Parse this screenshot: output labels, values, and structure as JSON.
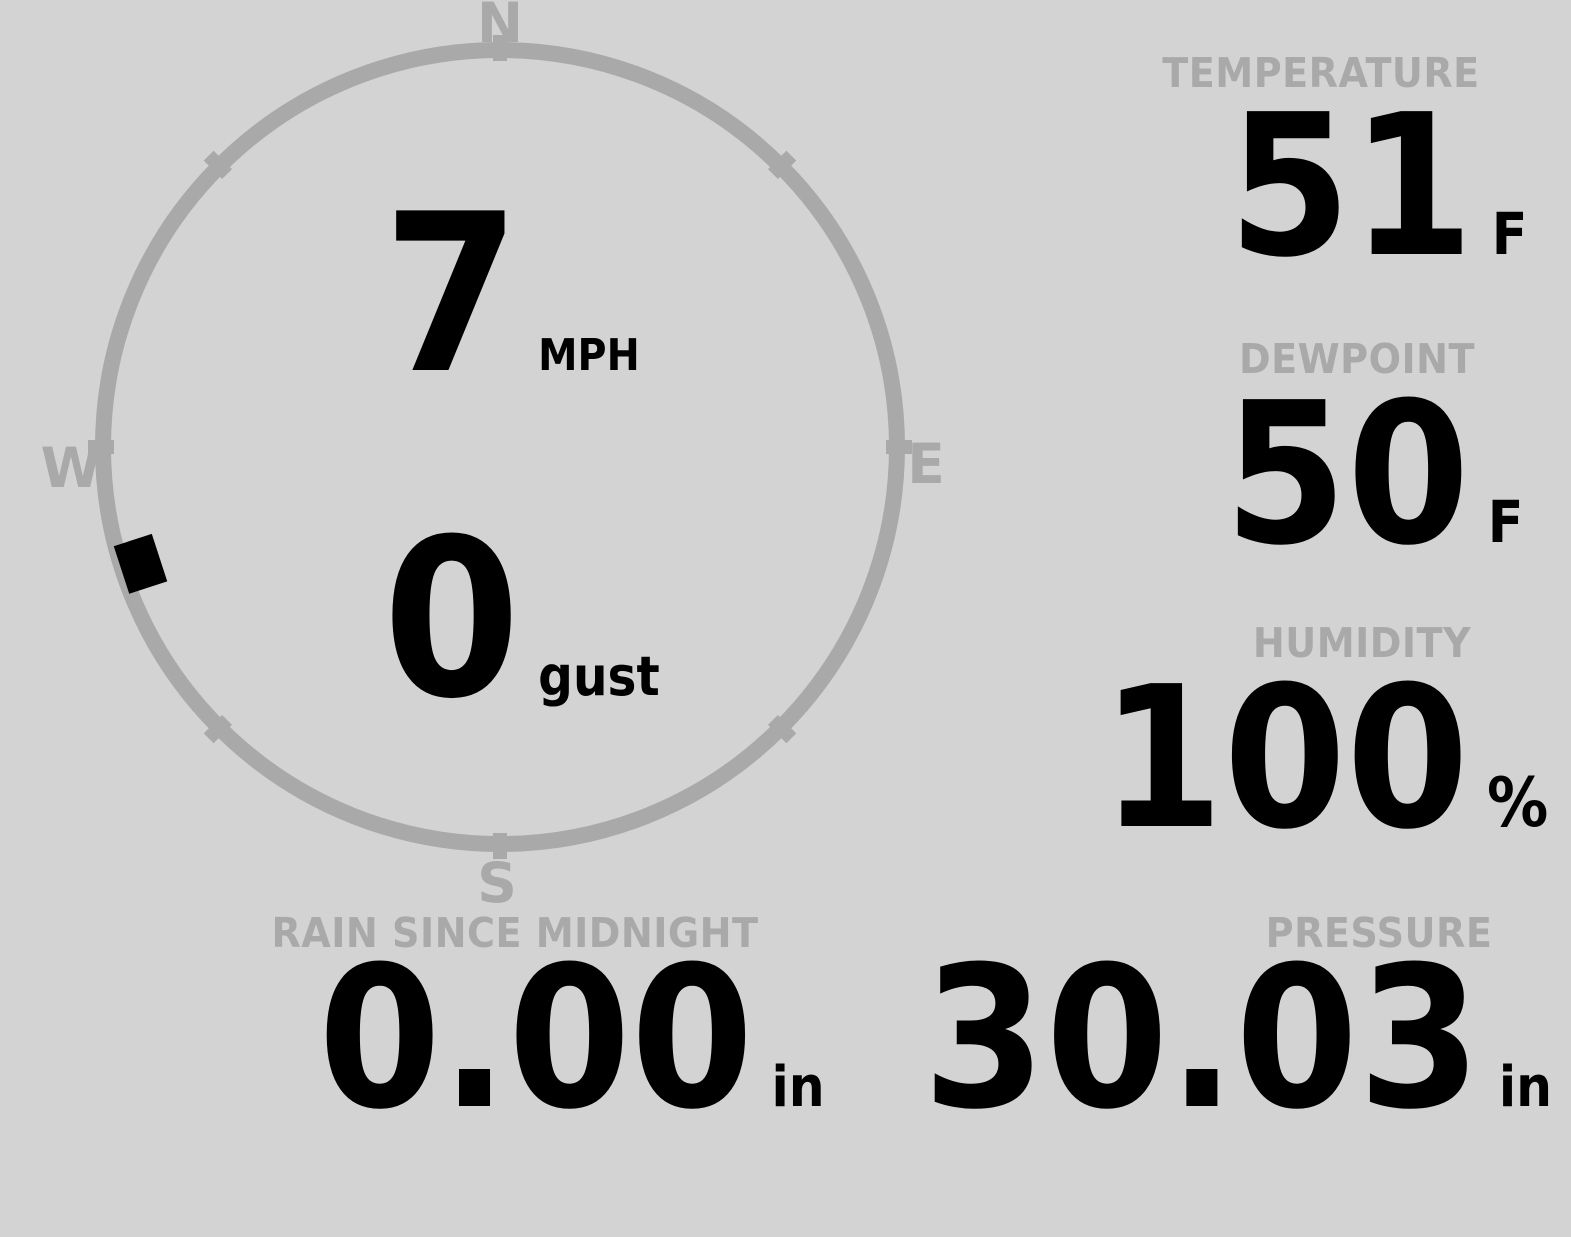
{
  "display": {
    "background_color": "#d3d3d3",
    "muted_color": "#a9a9a9",
    "value_color": "#000000"
  },
  "compass": {
    "cardinals": {
      "north": "N",
      "east": "E",
      "south": "S",
      "west": "W"
    },
    "wind_direction_deg": 252,
    "speed": {
      "value": "7",
      "unit": "MPH"
    },
    "gust": {
      "value": "0",
      "unit": "gust"
    }
  },
  "metrics": {
    "temperature": {
      "label": "TEMPERATURE",
      "value": "51",
      "unit": "F"
    },
    "dewpoint": {
      "label": "DEWPOINT",
      "value": "50",
      "unit": "F"
    },
    "humidity": {
      "label": "HUMIDITY",
      "value": "100",
      "unit": "%"
    },
    "rain": {
      "label": "RAIN SINCE MIDNIGHT",
      "value": "0.00",
      "unit": "in"
    },
    "pressure": {
      "label": "PRESSURE",
      "value": "30.03",
      "unit": "in"
    }
  }
}
